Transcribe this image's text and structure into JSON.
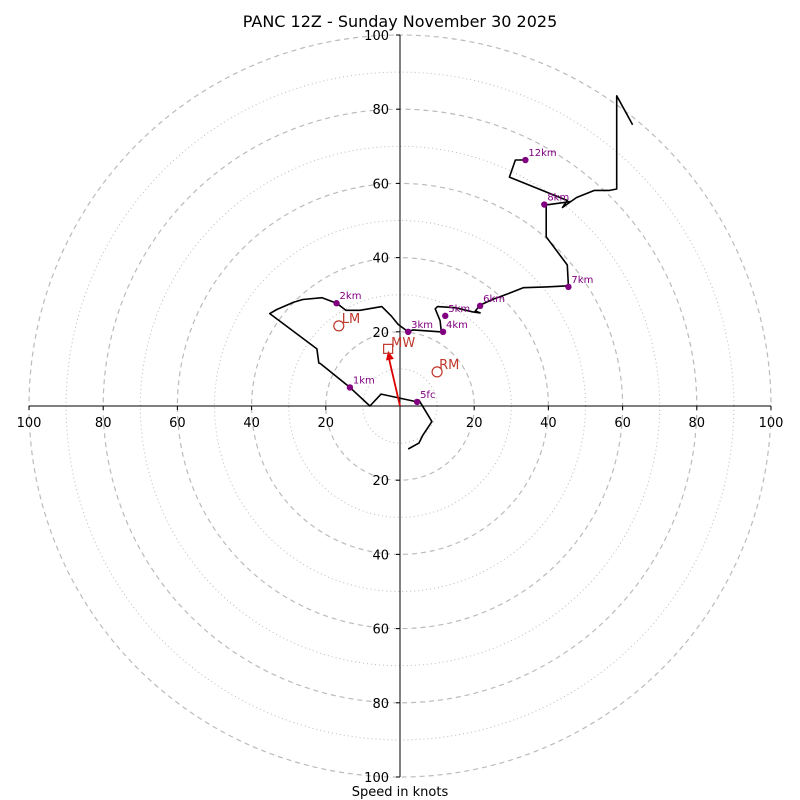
{
  "chart_data": {
    "type": "hodograph",
    "title": "PANC 12Z - Sunday November 30 2025",
    "xlabel": "Speed in knots",
    "units": "knots",
    "range": 100,
    "ring_major": [
      20,
      40,
      60,
      80,
      100
    ],
    "ring_minor": [
      10,
      30,
      50,
      70,
      90
    ],
    "x_ticks": [
      {
        "value": -100,
        "label": "100"
      },
      {
        "value": -80,
        "label": "80"
      },
      {
        "value": -60,
        "label": "60"
      },
      {
        "value": -40,
        "label": "40"
      },
      {
        "value": -20,
        "label": "20"
      },
      {
        "value": 20,
        "label": "20"
      },
      {
        "value": 40,
        "label": "40"
      },
      {
        "value": 60,
        "label": "60"
      },
      {
        "value": 80,
        "label": "80"
      },
      {
        "value": 100,
        "label": "100"
      }
    ],
    "y_ticks": [
      {
        "value": 100,
        "label": "100"
      },
      {
        "value": 80,
        "label": "80"
      },
      {
        "value": 60,
        "label": "60"
      },
      {
        "value": 40,
        "label": "40"
      },
      {
        "value": 20,
        "label": "20"
      },
      {
        "value": -20,
        "label": "20"
      },
      {
        "value": -40,
        "label": "40"
      },
      {
        "value": -60,
        "label": "60"
      },
      {
        "value": -80,
        "label": "80"
      },
      {
        "value": -100,
        "label": "100"
      }
    ],
    "profile": [
      [
        2.2,
        -11.6
      ],
      [
        5.1,
        -10.0
      ],
      [
        6.2,
        -7.8
      ],
      [
        8.6,
        -4.2
      ],
      [
        5.1,
        1.6
      ],
      [
        4.6,
        1.1
      ],
      [
        -5.1,
        3.2
      ],
      [
        -8.1,
        0.0
      ],
      [
        -13.5,
        5.0
      ],
      [
        -21.4,
        11.4
      ],
      [
        -21.9,
        11.6
      ],
      [
        -22.4,
        15.4
      ],
      [
        -35.1,
        24.9
      ],
      [
        -33.2,
        26.0
      ],
      [
        -28.6,
        28.0
      ],
      [
        -26.2,
        28.7
      ],
      [
        -21.0,
        29.2
      ],
      [
        -17.1,
        27.7
      ],
      [
        -16.0,
        26.9
      ],
      [
        -14.6,
        25.8
      ],
      [
        -10.8,
        25.8
      ],
      [
        -4.9,
        26.8
      ],
      [
        -2.4,
        24.3
      ],
      [
        -0.5,
        22.0
      ],
      [
        2.2,
        20.0
      ],
      [
        3.5,
        20.5
      ],
      [
        10.8,
        20.0
      ],
      [
        11.1,
        20.3
      ],
      [
        10.8,
        23.0
      ],
      [
        9.5,
        26.2
      ],
      [
        10.1,
        26.8
      ],
      [
        14.9,
        26.5
      ],
      [
        19.5,
        25.4
      ],
      [
        21.6,
        25.1
      ],
      [
        20.3,
        25.6
      ],
      [
        21.6,
        27.2
      ],
      [
        24.9,
        28.7
      ],
      [
        29.2,
        30.3
      ],
      [
        33.2,
        31.9
      ],
      [
        39.4,
        32.1
      ],
      [
        45.4,
        32.4
      ],
      [
        45.1,
        38.0
      ],
      [
        39.4,
        45.6
      ],
      [
        39.4,
        54.2
      ],
      [
        46.0,
        55.1
      ],
      [
        47.6,
        56.2
      ],
      [
        52.4,
        58.1
      ],
      [
        56.5,
        58.1
      ],
      [
        58.4,
        58.5
      ],
      [
        58.4,
        83.6
      ],
      [
        62.7,
        75.8
      ]
    ],
    "tail": [
      [
        46.0,
        55.1
      ],
      [
        43.8,
        53.5
      ],
      [
        45.1,
        55.4
      ],
      [
        29.5,
        61.7
      ],
      [
        31.1,
        66.3
      ],
      [
        33.8,
        66.3
      ]
    ],
    "height_markers": [
      {
        "label": "5fc",
        "u": 4.6,
        "v": 1.1
      },
      {
        "label": "1km",
        "u": -13.5,
        "v": 5.0
      },
      {
        "label": "2km",
        "u": -17.1,
        "v": 27.7
      },
      {
        "label": "3km",
        "u": 2.2,
        "v": 20.0
      },
      {
        "label": "4km",
        "u": 11.6,
        "v": 20.0
      },
      {
        "label": "5km",
        "u": 12.2,
        "v": 24.3
      },
      {
        "label": "6km",
        "u": 21.6,
        "v": 27.0
      },
      {
        "label": "7km",
        "u": 45.4,
        "v": 32.1
      },
      {
        "label": "8km",
        "u": 38.9,
        "v": 54.3
      },
      {
        "label": "12km",
        "u": 33.8,
        "v": 66.3
      }
    ],
    "storm_motion": {
      "mw": {
        "label": "MW",
        "u": -3.2,
        "v": 15.4
      },
      "lm": {
        "label": "LM",
        "u": -16.5,
        "v": 21.6
      },
      "rm": {
        "label": "RM",
        "u": 10.0,
        "v": 9.2
      }
    },
    "colors": {
      "trace": "#000000",
      "markers": "#800080",
      "storm": "#c0392b",
      "arrow": "#dd0000",
      "grid": "#bbbbbb",
      "axis": "#000000"
    }
  }
}
